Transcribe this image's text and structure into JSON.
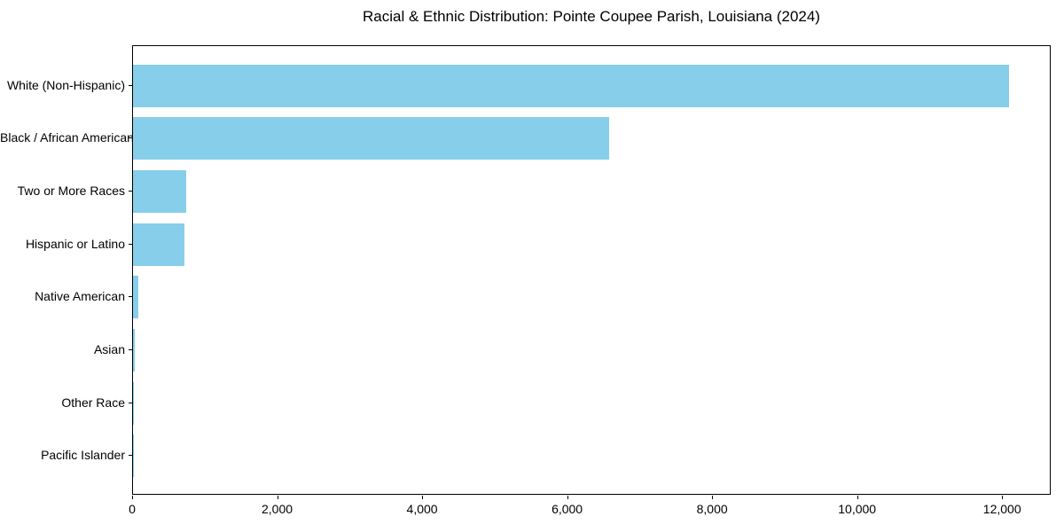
{
  "title": "Racial & Ethnic Distribution: Pointe Coupee Parish, Louisiana (2024)",
  "colors": {
    "bar": "#87CEEB",
    "axis": "#000000",
    "text": "#000000",
    "background": "#ffffff"
  },
  "chart_data": {
    "type": "bar",
    "orientation": "horizontal",
    "title": "Racial & Ethnic Distribution: Pointe Coupee Parish, Louisiana (2024)",
    "categories": [
      "White (Non-Hispanic)",
      "Black / African American",
      "Two or More Races",
      "Hispanic or Latino",
      "Native American",
      "Asian",
      "Other Race",
      "Pacific Islander"
    ],
    "values": [
      12080,
      6570,
      735,
      710,
      75,
      30,
      10,
      2
    ],
    "xlabel": "",
    "ylabel": "",
    "xlim": [
      0,
      12670
    ],
    "x_ticks": [
      0,
      2000,
      4000,
      6000,
      8000,
      10000,
      12000
    ],
    "x_tick_labels": [
      "0",
      "2,000",
      "4,000",
      "6,000",
      "8,000",
      "10,000",
      "12,000"
    ],
    "bar_color": "#87CEEB",
    "grid": false,
    "legend": null
  }
}
